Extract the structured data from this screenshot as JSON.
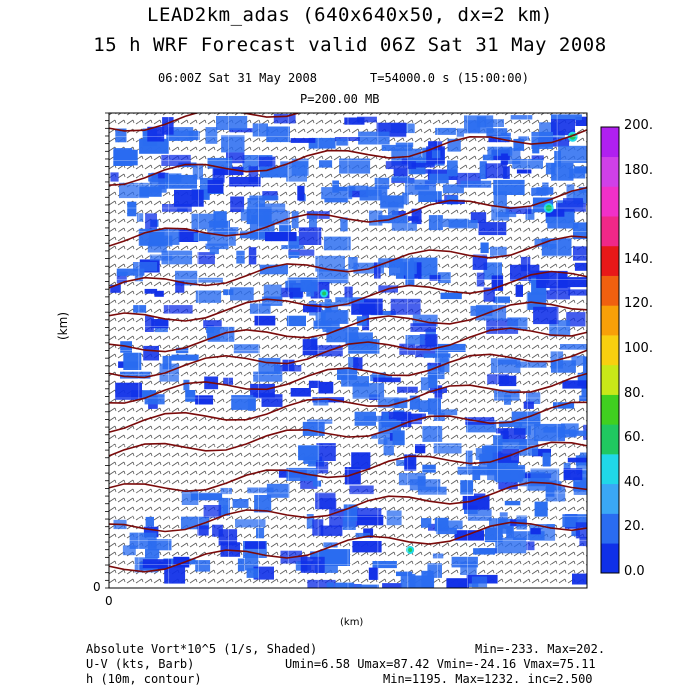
{
  "header": {
    "title_line1": "LEAD2km_adas (640x640x50, dx=2 km)",
    "title_line2": "15 h WRF Forecast valid 06Z Sat 31 May 2008",
    "time_label": "06:00Z Sat 31 May 2008",
    "seconds_label": "T=54000.0 s (15:00:00)",
    "level_label": "P=200.00 MB"
  },
  "axes": {
    "x_label": "(km)",
    "y_label": "(km)",
    "x_origin": "0",
    "y_origin": "0"
  },
  "footer": {
    "line1_left": "Absolute Vort*10^5 (1/s, Shaded)",
    "line1_right": "Min=-233. Max=202.",
    "line2_left": "U-V (kts, Barb)",
    "line2_right": "Umin=6.58 Umax=87.42 Vmin=-24.16 Vmax=75.11",
    "line3_left": "h (10m, contour)",
    "line3_right": "Min=1195. Max=1232. inc=2.500"
  },
  "chart_data": {
    "type": "heatmap",
    "field": "Absolute Vort*10^5 (1/s, Shaded)",
    "colorbar": {
      "ticks": [
        "0.0",
        "20.",
        "40.",
        "60.",
        "80.",
        "100.",
        "120.",
        "140.",
        "160.",
        "180.",
        "200."
      ],
      "colors": [
        "#1030e8",
        "#2a6cf0",
        "#3aa8f5",
        "#20d8e8",
        "#20c860",
        "#40d020",
        "#c8e818",
        "#f8d010",
        "#f8a008",
        "#f06010",
        "#e81818",
        "#f02888",
        "#f030c8",
        "#d040e8",
        "#b020f0"
      ]
    },
    "fill_min": -233,
    "fill_max": 202,
    "barb_stats": {
      "umin": 6.58,
      "umax": 87.42,
      "vmin": -24.16,
      "vmax": 75.11
    },
    "contour": {
      "min": 1195,
      "max": 1232,
      "inc": 2.5
    },
    "grid": true
  }
}
